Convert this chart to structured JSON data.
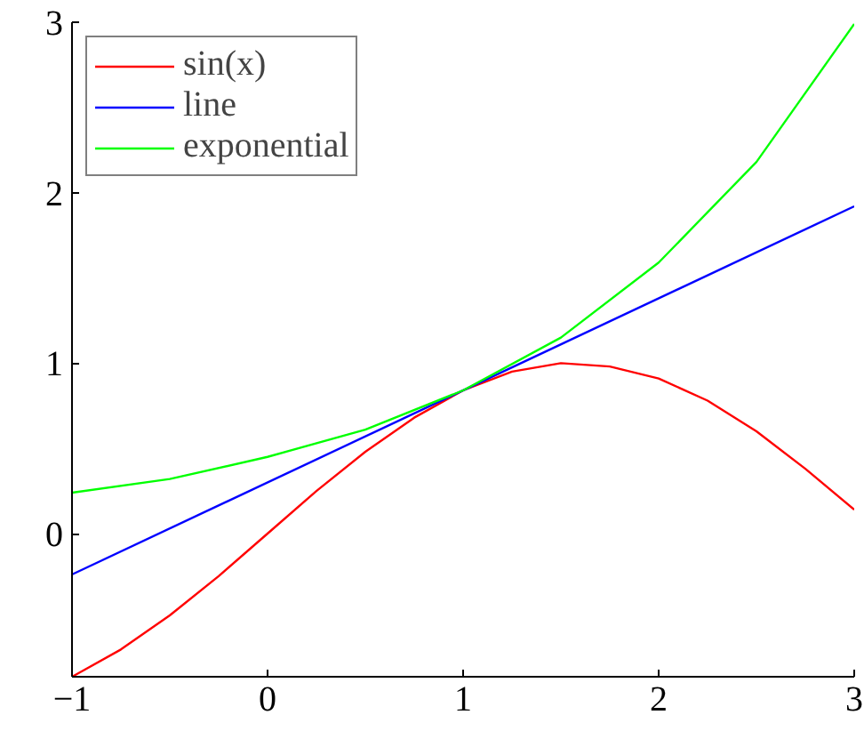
{
  "chart_data": {
    "type": "line",
    "series": [
      {
        "name": "sin(x)",
        "color": "#ff0000",
        "x": [
          -1,
          -0.75,
          -0.5,
          -0.25,
          0,
          0.25,
          0.5,
          0.75,
          1,
          1.25,
          1.5,
          1.75,
          2,
          2.25,
          2.5,
          2.75,
          3
        ],
        "values": [
          -0.84,
          -0.68,
          -0.48,
          -0.25,
          0,
          0.25,
          0.48,
          0.68,
          0.84,
          0.95,
          1.0,
          0.98,
          0.91,
          0.78,
          0.6,
          0.38,
          0.14
        ]
      },
      {
        "name": "line",
        "color": "#0000ff",
        "x": [
          -1,
          3
        ],
        "values": [
          -0.24,
          1.92
        ]
      },
      {
        "name": "exponential",
        "color": "#00ff00",
        "x": [
          -1,
          -0.5,
          0,
          0.5,
          1,
          1.5,
          2,
          2.5,
          3
        ],
        "values": [
          0.24,
          0.32,
          0.45,
          0.61,
          0.84,
          1.15,
          1.59,
          2.18,
          2.99
        ]
      }
    ],
    "xlim": [
      -1,
      3
    ],
    "ylim": [
      -0.84,
      3
    ],
    "xticks": [
      {
        "value": -1,
        "label": "−1"
      },
      0,
      1,
      2,
      3
    ],
    "yticks": [
      0,
      1,
      2,
      3
    ],
    "grid": false,
    "legend": "top left",
    "marker": "none",
    "line_style": "solid"
  }
}
